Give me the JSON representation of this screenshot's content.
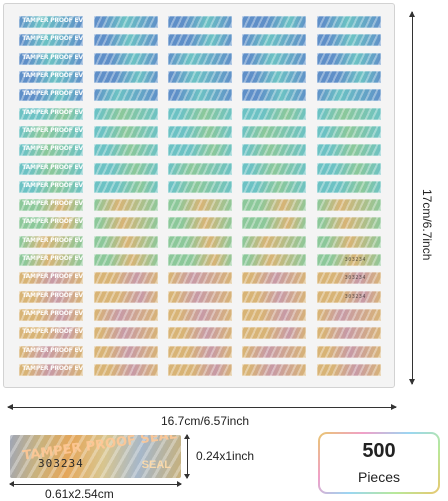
{
  "sheet": {
    "sticker_text": "TAMPER PROOF EVIDENT",
    "serial": "303234",
    "columns": 5,
    "rows": 20,
    "colors": {
      "top": "#5f8fc8",
      "upper_mid": "#6cc2c4",
      "middle": "#8cc89a",
      "lower_mid": "#d8b476",
      "bottom": "#c79aa6"
    }
  },
  "dimensions": {
    "height_label": "17cm/6.7inch",
    "width_label": "16.7cm/6.57inch",
    "sticker_height_label": "0.24x1inch",
    "sticker_width_label": "0.61x2.54cm"
  },
  "sample": {
    "text": "TAMPER PROOF SEAL",
    "seal": "SEAL",
    "serial": "303234"
  },
  "badge": {
    "count": "500",
    "unit": "Pieces"
  }
}
